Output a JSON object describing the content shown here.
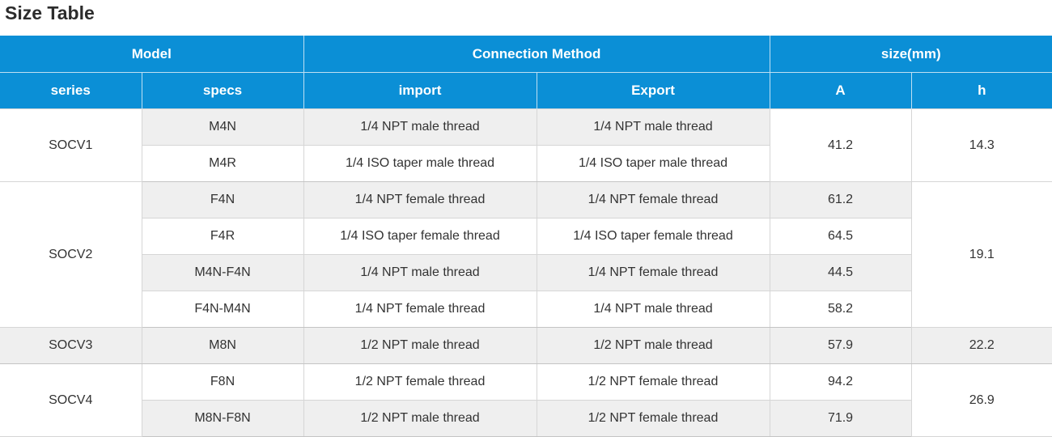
{
  "title": "Size Table",
  "header": {
    "group": [
      "Model",
      "Connection Method",
      "size(mm)"
    ],
    "columns": [
      "series",
      "specs",
      "import",
      "Export",
      "A",
      "h"
    ]
  },
  "rows": [
    {
      "series": "SOCV1",
      "spec": "M4N",
      "import": "1/4 NPT male thread",
      "export": "1/4 NPT male thread",
      "a": "41.2",
      "h": "14.3"
    },
    {
      "spec": "M4R",
      "import": "1/4 ISO taper  male thread",
      "export": "1/4 ISO taper  male thread"
    },
    {
      "series": "SOCV2",
      "spec": "F4N",
      "import": "1/4 NPT female thread",
      "export": "1/4 NPT female thread",
      "a": "61.2",
      "h": "19.1"
    },
    {
      "spec": "F4R",
      "import": "1/4 ISO taper  female thread",
      "export": "1/4 ISO taper  female thread",
      "a": "64.5"
    },
    {
      "spec": "M4N-F4N",
      "import": "1/4 NPT male thread",
      "export": "1/4 NPT female thread",
      "a": "44.5"
    },
    {
      "spec": "F4N-M4N",
      "import": "1/4 NPT female thread",
      "export": "1/4 NPT male thread",
      "a": "58.2"
    },
    {
      "series": "SOCV3",
      "spec": "M8N",
      "import": "1/2 NPT male thread",
      "export": "1/2 NPT male thread",
      "a": "57.9",
      "h": "22.2"
    },
    {
      "series": "SOCV4",
      "spec": "F8N",
      "import": "1/2 NPT female thread",
      "export": "1/2 NPT female thread",
      "a": "94.2",
      "h": "26.9"
    },
    {
      "spec": "M8N-F8N",
      "import": "1/2 NPT male thread",
      "export": "1/2 NPT female thread",
      "a": "71.9"
    }
  ]
}
